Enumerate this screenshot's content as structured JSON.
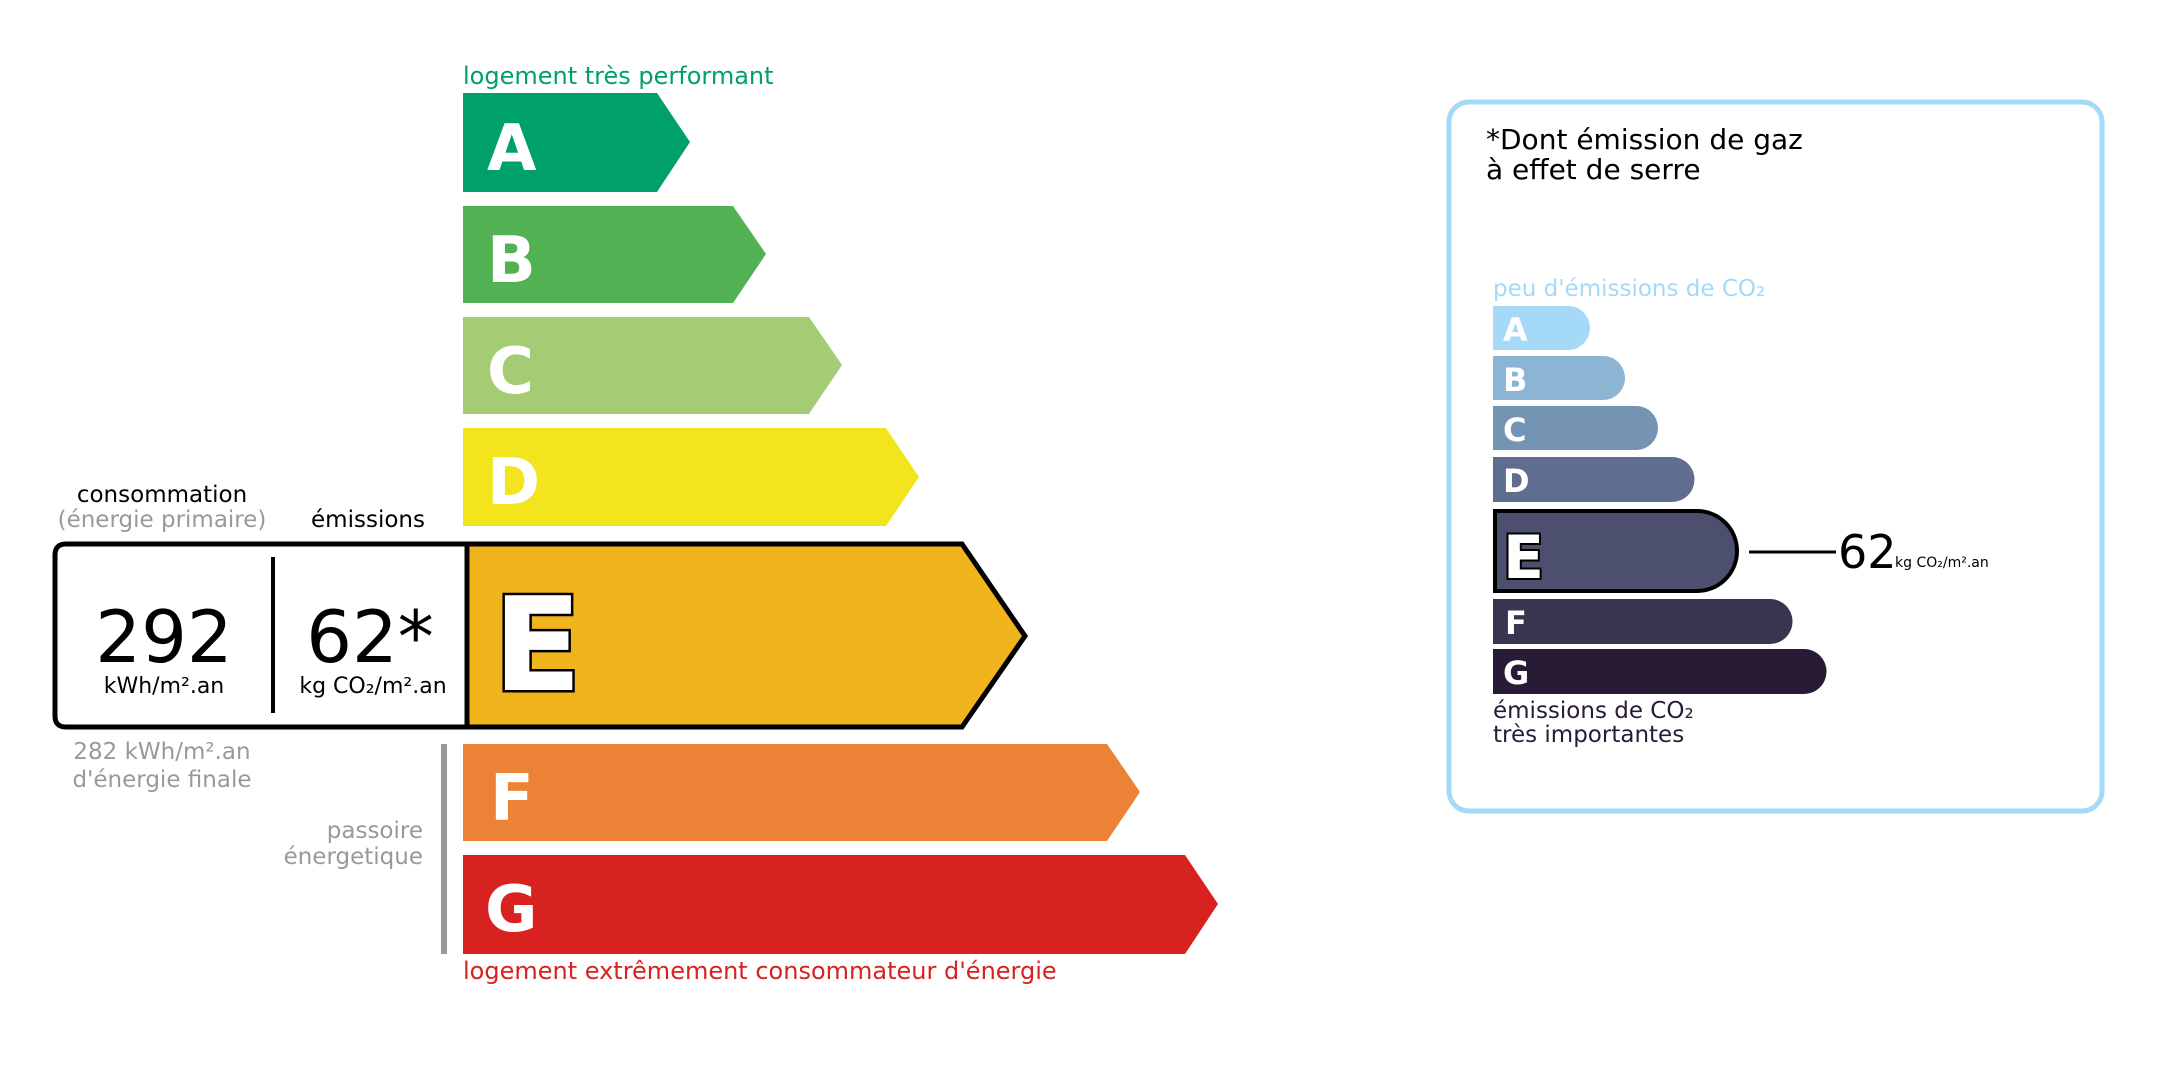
{
  "energy": {
    "top_label": "logement très performant",
    "bottom_label": "logement extrêmement consommateur d'énergie",
    "classes": [
      {
        "letter": "A",
        "color": "#00a06d"
      },
      {
        "letter": "B",
        "color": "#52b153"
      },
      {
        "letter": "C",
        "color": "#a5cc74"
      },
      {
        "letter": "D",
        "color": "#f2e51d"
      },
      {
        "letter": "E",
        "color": "#f0b41c"
      },
      {
        "letter": "F",
        "color": "#eb8235"
      },
      {
        "letter": "G",
        "color": "#d7221f"
      }
    ],
    "current_class": "E",
    "consumption_label": "consommation",
    "consumption_sub": "(énergie primaire)",
    "emissions_label": "émissions",
    "consumption_value": "292",
    "consumption_unit": "kWh/m².an",
    "emissions_value": "62*",
    "emissions_unit": "kg CO₂/m².an",
    "final_energy_line1": "282 kWh/m².an",
    "final_energy_line2": "d'énergie finale",
    "passoire_line1": "passoire",
    "passoire_line2": "énergetique"
  },
  "ghg": {
    "title_line1": "*Dont émission de gaz",
    "title_line2": "à effet de serre",
    "top_label": "peu d'émissions de CO₂",
    "bottom_line1": "émissions de CO₂",
    "bottom_line2": "très importantes",
    "border_color": "#a4d9f7",
    "classes": [
      {
        "letter": "A",
        "color": "#a4d9f7"
      },
      {
        "letter": "B",
        "color": "#8cb4d3"
      },
      {
        "letter": "C",
        "color": "#7593b3"
      },
      {
        "letter": "D",
        "color": "#5f6e8f"
      },
      {
        "letter": "E",
        "color": "#4c4f6d"
      },
      {
        "letter": "F",
        "color": "#393551"
      },
      {
        "letter": "G",
        "color": "#281b35"
      }
    ],
    "current_class": "E",
    "value": "62",
    "unit": "kg CO₂/m².an"
  }
}
